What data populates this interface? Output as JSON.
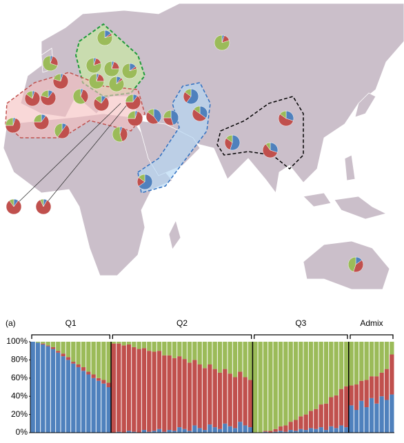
{
  "map": {
    "pies": [
      {
        "values": [
          5,
          25,
          70
        ]
      },
      {
        "values": [
          15,
          5,
          80
        ]
      },
      {
        "values": [
          5,
          15,
          80
        ]
      },
      {
        "values": [
          5,
          20,
          75
        ]
      },
      {
        "values": [
          15,
          5,
          80
        ]
      },
      {
        "values": [
          5,
          20,
          75
        ]
      },
      {
        "values": [
          10,
          5,
          85
        ]
      },
      {
        "values": [
          5,
          35,
          60
        ]
      },
      {
        "values": [
          5,
          75,
          20
        ]
      },
      {
        "values": [
          5,
          80,
          15
        ]
      },
      {
        "values": [
          10,
          70,
          20
        ]
      },
      {
        "values": [
          10,
          75,
          15
        ]
      },
      {
        "values": [
          10,
          65,
          25
        ]
      },
      {
        "values": [
          5,
          70,
          25
        ]
      },
      {
        "values": [
          10,
          65,
          25
        ]
      },
      {
        "values": [
          10,
          50,
          40
        ]
      },
      {
        "values": [
          5,
          70,
          25
        ]
      },
      {
        "values": [
          5,
          40,
          55
        ]
      },
      {
        "values": [
          40,
          45,
          15
        ]
      },
      {
        "values": [
          45,
          30,
          25
        ]
      },
      {
        "values": [
          60,
          25,
          15
        ]
      },
      {
        "values": [
          35,
          50,
          15
        ]
      },
      {
        "values": [
          65,
          20,
          15
        ]
      },
      {
        "values": [
          55,
          30,
          15
        ]
      },
      {
        "values": [
          30,
          55,
          15
        ]
      },
      {
        "values": [
          30,
          60,
          10
        ]
      },
      {
        "values": [
          5,
          15,
          80
        ]
      },
      {
        "values": [
          15,
          40,
          45
        ]
      },
      {
        "values": [
          10,
          80,
          10
        ]
      },
      {
        "values": [
          8,
          85,
          7
        ]
      }
    ]
  },
  "chart_data": {
    "type": "stacked-bar",
    "label": "(a)",
    "colors": [
      "#4f81bd",
      "#c0504d",
      "#9bbb59"
    ],
    "ylim": [
      0,
      100
    ],
    "yticks": [
      {
        "value": 0,
        "label": "0%"
      },
      {
        "value": 20,
        "label": "20%"
      },
      {
        "value": 40,
        "label": "40%"
      },
      {
        "value": 60,
        "label": "60%"
      },
      {
        "value": 80,
        "label": "80%"
      },
      {
        "value": 100,
        "label": "100%"
      }
    ],
    "groups": [
      {
        "label": "Q1",
        "values": [
          [
            100,
            0,
            0
          ],
          [
            99,
            0,
            1
          ],
          [
            97,
            1,
            2
          ],
          [
            95,
            1,
            4
          ],
          [
            92,
            2,
            6
          ],
          [
            88,
            2,
            10
          ],
          [
            84,
            3,
            13
          ],
          [
            80,
            3,
            17
          ],
          [
            76,
            2,
            22
          ],
          [
            72,
            3,
            25
          ],
          [
            68,
            4,
            28
          ],
          [
            64,
            3,
            33
          ],
          [
            60,
            4,
            36
          ],
          [
            57,
            3,
            40
          ],
          [
            54,
            4,
            42
          ],
          [
            50,
            5,
            45
          ]
        ]
      },
      {
        "label": "Q2",
        "values": [
          [
            0,
            98,
            2
          ],
          [
            1,
            97,
            2
          ],
          [
            0,
            96,
            4
          ],
          [
            2,
            95,
            3
          ],
          [
            1,
            93,
            6
          ],
          [
            0,
            92,
            8
          ],
          [
            3,
            90,
            7
          ],
          [
            1,
            89,
            10
          ],
          [
            2,
            87,
            11
          ],
          [
            4,
            86,
            10
          ],
          [
            1,
            84,
            15
          ],
          [
            3,
            82,
            15
          ],
          [
            2,
            80,
            18
          ],
          [
            6,
            78,
            16
          ],
          [
            4,
            77,
            19
          ],
          [
            2,
            75,
            23
          ],
          [
            8,
            72,
            20
          ],
          [
            5,
            70,
            25
          ],
          [
            3,
            68,
            29
          ],
          [
            9,
            66,
            25
          ],
          [
            6,
            64,
            30
          ],
          [
            4,
            62,
            34
          ],
          [
            10,
            60,
            30
          ],
          [
            7,
            58,
            35
          ],
          [
            5,
            56,
            39
          ],
          [
            12,
            55,
            33
          ],
          [
            8,
            53,
            39
          ],
          [
            6,
            52,
            42
          ]
        ]
      },
      {
        "label": "Q3",
        "values": [
          [
            0,
            0,
            100
          ],
          [
            0,
            0,
            100
          ],
          [
            1,
            1,
            98
          ],
          [
            0,
            2,
            98
          ],
          [
            1,
            3,
            96
          ],
          [
            2,
            5,
            93
          ],
          [
            1,
            7,
            92
          ],
          [
            3,
            9,
            88
          ],
          [
            2,
            12,
            86
          ],
          [
            4,
            14,
            82
          ],
          [
            3,
            17,
            80
          ],
          [
            5,
            19,
            76
          ],
          [
            4,
            22,
            74
          ],
          [
            6,
            25,
            69
          ],
          [
            3,
            29,
            68
          ],
          [
            7,
            32,
            61
          ],
          [
            5,
            36,
            59
          ],
          [
            8,
            40,
            52
          ],
          [
            6,
            45,
            49
          ]
        ]
      },
      {
        "label": "Admix",
        "values": [
          [
            30,
            22,
            48
          ],
          [
            25,
            28,
            47
          ],
          [
            35,
            22,
            43
          ],
          [
            28,
            30,
            42
          ],
          [
            38,
            24,
            38
          ],
          [
            32,
            30,
            38
          ],
          [
            40,
            26,
            34
          ],
          [
            36,
            34,
            30
          ],
          [
            42,
            44,
            14
          ]
        ]
      }
    ]
  }
}
